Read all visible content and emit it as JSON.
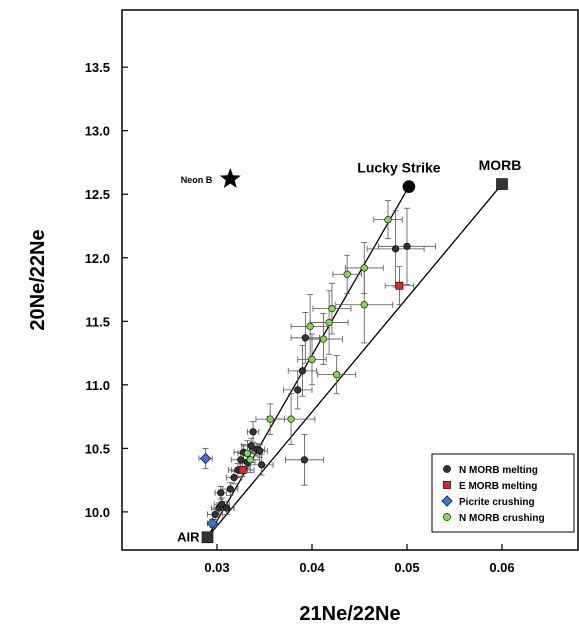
{
  "chart_data": {
    "type": "scatter",
    "xlabel": "21Ne/22Ne",
    "ylabel": "20Ne/22Ne",
    "xlim": [
      0.02,
      0.068
    ],
    "ylim": [
      9.7,
      13.95
    ],
    "x_ticks": [
      0.03,
      0.04,
      0.05,
      0.06
    ],
    "x_tick_labels": [
      "0.03",
      "0.04",
      "0.05",
      "0.06"
    ],
    "y_ticks": [
      10.0,
      10.5,
      11.0,
      11.5,
      12.0,
      12.5,
      13.0,
      13.5
    ],
    "y_tick_labels": [
      "10.0",
      "10.5",
      "11.0",
      "11.5",
      "12.0",
      "12.5",
      "13.0",
      "13.5"
    ],
    "grid": false,
    "legend_position": "bottom-right",
    "series": [
      {
        "name": "N MORB melting",
        "marker": "circle",
        "color": "#333333",
        "points": [
          {
            "x": 0.0298,
            "y": 9.98,
            "xe": 0.0008,
            "ye": 0.04
          },
          {
            "x": 0.0302,
            "y": 10.03,
            "xe": 0.0008,
            "ye": 0.04
          },
          {
            "x": 0.0305,
            "y": 10.06,
            "xe": 0.0008,
            "ye": 0.05
          },
          {
            "x": 0.0304,
            "y": 10.15,
            "xe": 0.0006,
            "ye": 0.05
          },
          {
            "x": 0.031,
            "y": 10.03,
            "xe": 0.0008,
            "ye": 0.05
          },
          {
            "x": 0.0314,
            "y": 10.18,
            "xe": 0.0008,
            "ye": 0.05
          },
          {
            "x": 0.0318,
            "y": 10.27,
            "xe": 0.0008,
            "ye": 0.05
          },
          {
            "x": 0.0322,
            "y": 10.33,
            "xe": 0.001,
            "ye": 0.05
          },
          {
            "x": 0.0325,
            "y": 10.41,
            "xe": 0.001,
            "ye": 0.06
          },
          {
            "x": 0.0328,
            "y": 10.47,
            "xe": 0.001,
            "ye": 0.06
          },
          {
            "x": 0.0332,
            "y": 10.39,
            "xe": 0.0008,
            "ye": 0.05
          },
          {
            "x": 0.0336,
            "y": 10.52,
            "xe": 0.001,
            "ye": 0.06
          },
          {
            "x": 0.0338,
            "y": 10.63,
            "xe": 0.0006,
            "ye": 0.08
          },
          {
            "x": 0.0342,
            "y": 10.49,
            "xe": 0.0008,
            "ye": 0.05
          },
          {
            "x": 0.0345,
            "y": 10.48,
            "xe": 0.0008,
            "ye": 0.05
          },
          {
            "x": 0.0347,
            "y": 10.37,
            "xe": 0.0012,
            "ye": 0.08
          },
          {
            "x": 0.0385,
            "y": 10.96,
            "xe": 0.0015,
            "ye": 0.15
          },
          {
            "x": 0.039,
            "y": 11.11,
            "xe": 0.0015,
            "ye": 0.2
          },
          {
            "x": 0.0393,
            "y": 11.37,
            "xe": 0.0015,
            "ye": 0.2
          },
          {
            "x": 0.0392,
            "y": 10.41,
            "xe": 0.002,
            "ye": 0.2
          },
          {
            "x": 0.0488,
            "y": 12.07,
            "xe": 0.003,
            "ye": 0.3
          },
          {
            "x": 0.05,
            "y": 12.09,
            "xe": 0.003,
            "ye": 0.3
          }
        ]
      },
      {
        "name": "E MORB melting",
        "marker": "square",
        "color": "#d82828",
        "points": [
          {
            "x": 0.0327,
            "y": 10.33,
            "xe": 0.0012,
            "ye": 0.05
          },
          {
            "x": 0.0492,
            "y": 11.78,
            "xe": 0.0015,
            "ye": 0.15
          }
        ]
      },
      {
        "name": "Picrite crushing",
        "marker": "diamond",
        "color": "#3a72d6",
        "points": [
          {
            "x": 0.0288,
            "y": 10.42,
            "xe": 0.0007,
            "ye": 0.08
          },
          {
            "x": 0.0295,
            "y": 9.91,
            "xe": 0.0005,
            "ye": 0.03
          }
        ]
      },
      {
        "name": "N MORB crushing",
        "marker": "circle",
        "color": "#7ed957",
        "points": [
          {
            "x": 0.0332,
            "y": 10.46,
            "xe": 0.001,
            "ye": 0.1
          },
          {
            "x": 0.0335,
            "y": 10.41,
            "xe": 0.001,
            "ye": 0.1
          },
          {
            "x": 0.0356,
            "y": 10.73,
            "xe": 0.0015,
            "ye": 0.12
          },
          {
            "x": 0.0378,
            "y": 10.73,
            "xe": 0.0025,
            "ye": 0.2
          },
          {
            "x": 0.0398,
            "y": 11.46,
            "xe": 0.002,
            "ye": 0.25
          },
          {
            "x": 0.04,
            "y": 11.2,
            "xe": 0.0015,
            "ye": 0.2
          },
          {
            "x": 0.0412,
            "y": 11.36,
            "xe": 0.002,
            "ye": 0.2
          },
          {
            "x": 0.0418,
            "y": 11.49,
            "xe": 0.002,
            "ye": 0.25
          },
          {
            "x": 0.0421,
            "y": 11.6,
            "xe": 0.002,
            "ye": 0.2
          },
          {
            "x": 0.0426,
            "y": 11.08,
            "xe": 0.002,
            "ye": 0.15
          },
          {
            "x": 0.0437,
            "y": 11.87,
            "xe": 0.0015,
            "ye": 0.15
          },
          {
            "x": 0.0455,
            "y": 11.92,
            "xe": 0.002,
            "ye": 0.2
          },
          {
            "x": 0.0455,
            "y": 11.63,
            "xe": 0.003,
            "ye": 0.3
          },
          {
            "x": 0.048,
            "y": 12.3,
            "xe": 0.0015,
            "ye": 0.15
          }
        ]
      }
    ],
    "reference_points": [
      {
        "name": "AIR",
        "x": 0.029,
        "y": 9.8,
        "marker": "square"
      },
      {
        "name": "MORB",
        "x": 0.06,
        "y": 12.58,
        "marker": "square"
      },
      {
        "name": "Lucky Strike",
        "x": 0.0502,
        "y": 12.56,
        "marker": "circle"
      },
      {
        "name": "Neon B",
        "x": 0.0314,
        "y": 12.62,
        "marker": "star"
      }
    ],
    "mixing_lines": [
      {
        "from": "AIR",
        "to": "MORB"
      },
      {
        "from": "AIR",
        "to": "Lucky Strike"
      }
    ]
  },
  "legend": {
    "items": [
      {
        "label": "N MORB melting",
        "marker": "circle",
        "color": "#333333"
      },
      {
        "label": "E MORB melting",
        "marker": "square",
        "color": "#d82828"
      },
      {
        "label": "Picrite crushing",
        "marker": "diamond",
        "color": "#3a72d6"
      },
      {
        "label": "N MORB crushing",
        "marker": "circle",
        "color": "#7ed957"
      }
    ]
  }
}
